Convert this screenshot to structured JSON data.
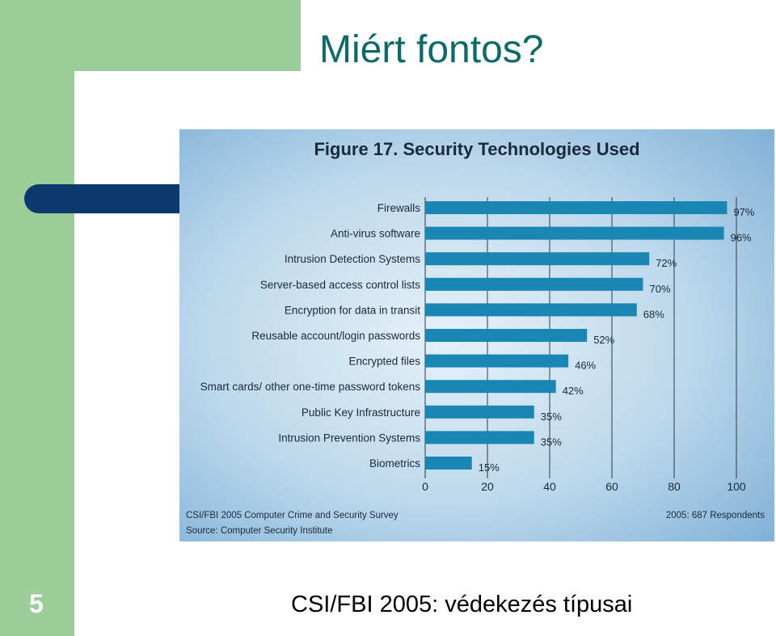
{
  "slide": {
    "title": "Miért fontos?",
    "caption": "CSI/FBI 2005: védekezés típusai",
    "page_number": "5"
  },
  "colors": {
    "accent_green": "#9dcd98",
    "navy": "#0b3a6e",
    "title_teal": "#0b6b6a",
    "bar": "#1a86b4"
  },
  "chart_data": {
    "type": "bar",
    "orientation": "horizontal",
    "title": "Figure 17. Security Technologies Used",
    "categories": [
      "Firewalls",
      "Anti-virus software",
      "Intrusion Detection Systems",
      "Server-based access control lists",
      "Encryption for data in transit",
      "Reusable account/login passwords",
      "Encrypted files",
      "Smart cards/ other one-time password tokens",
      "Public Key Infrastructure",
      "Intrusion Prevention Systems",
      "Biometrics"
    ],
    "values": [
      97,
      96,
      72,
      70,
      68,
      52,
      46,
      42,
      35,
      35,
      15
    ],
    "value_labels": [
      "97%",
      "96%",
      "72%",
      "70%",
      "68%",
      "52%",
      "46%",
      "42%",
      "35%",
      "35%",
      "15%"
    ],
    "xlim": [
      0,
      100
    ],
    "xticks": [
      "0",
      "20",
      "40",
      "60",
      "80",
      "100"
    ],
    "grid": true,
    "footer_left": [
      "CSI/FBI 2005 Computer Crime and Security Survey",
      "Source: Computer Security Institute"
    ],
    "footer_right": "2005: 687 Respondents"
  }
}
